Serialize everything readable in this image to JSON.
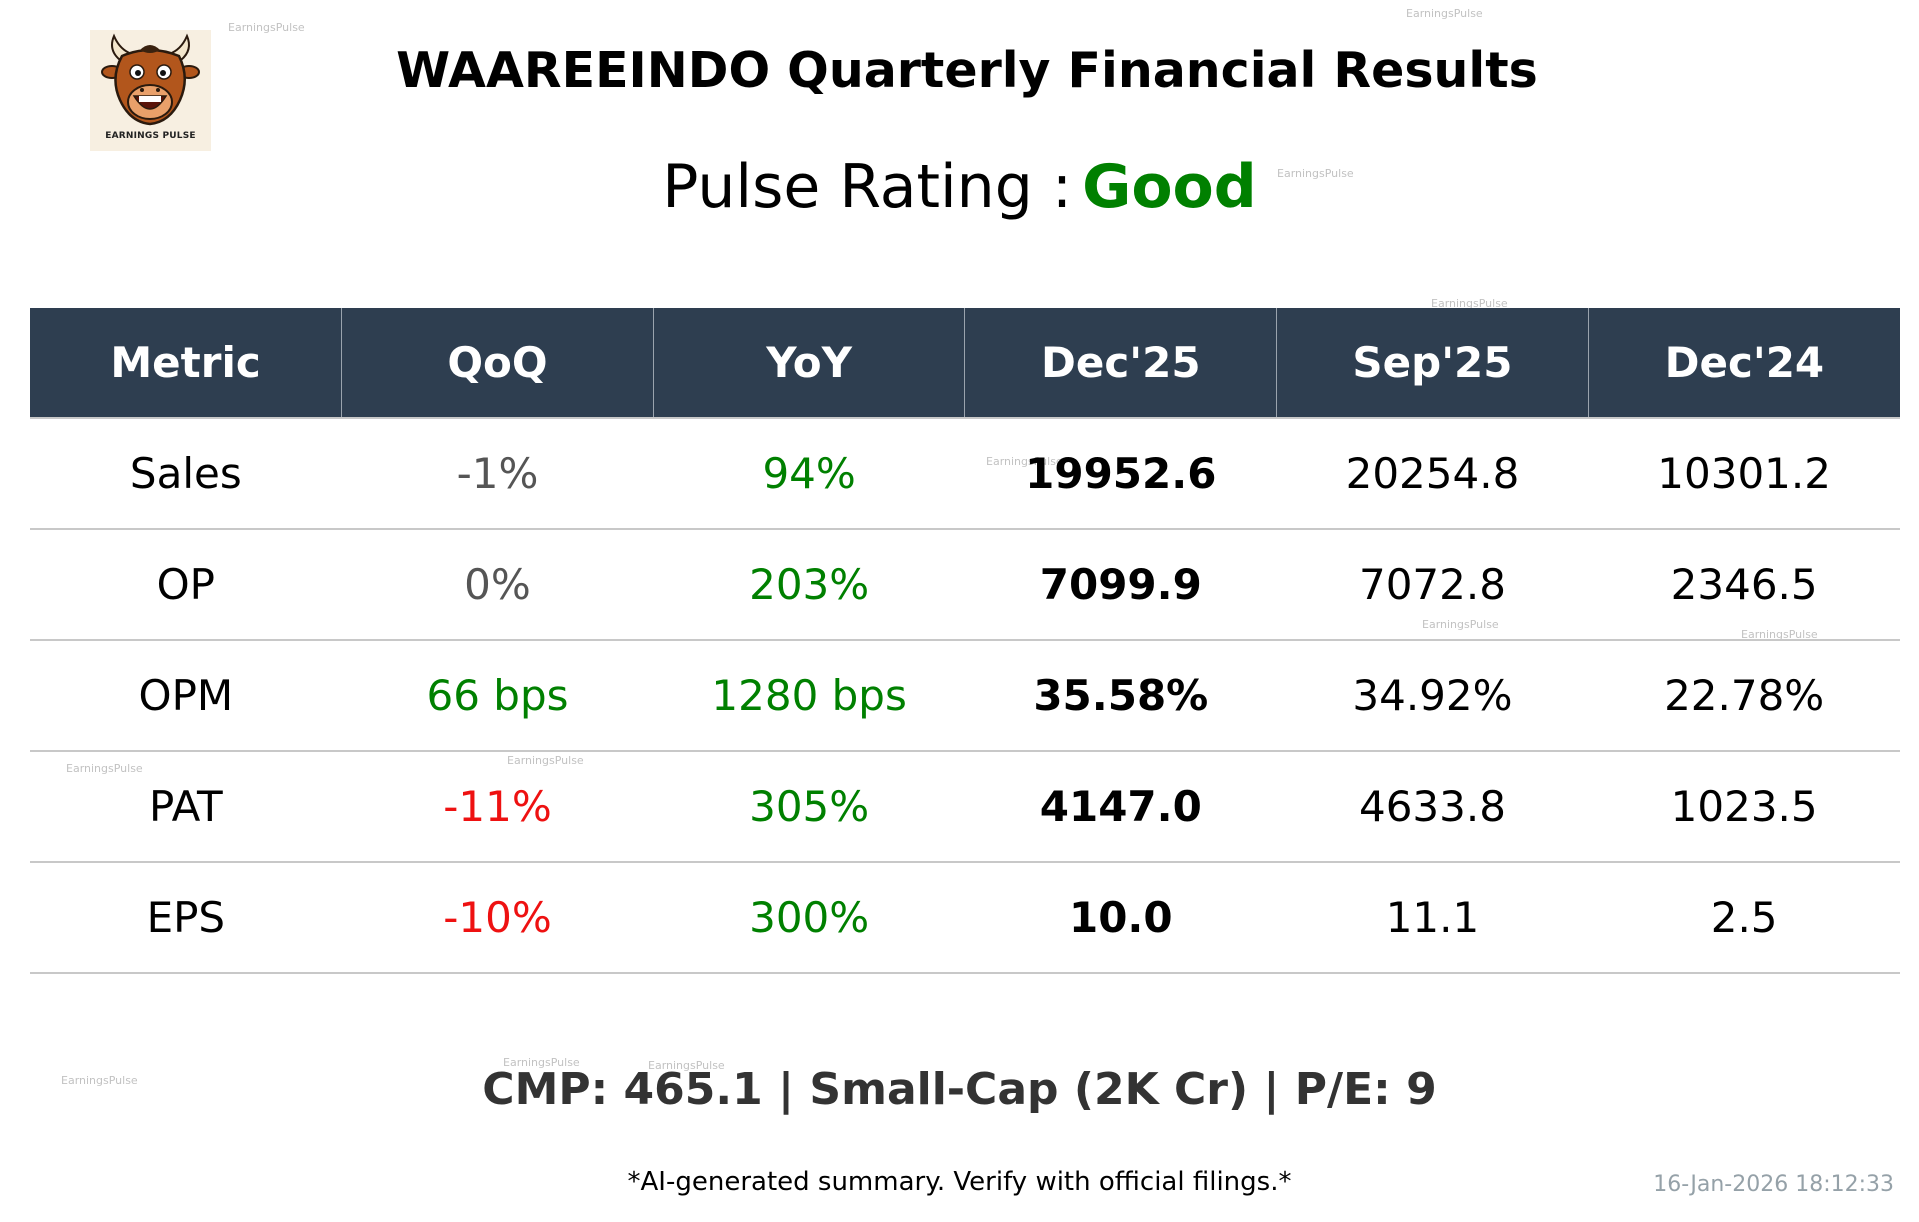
{
  "logo": {
    "text": "EARNINGS PULSE"
  },
  "title": "WAAREEINDO Quarterly Financial Results",
  "rating": {
    "label": "Pulse Rating :",
    "value": "Good",
    "color": "#008000"
  },
  "table": {
    "headers": [
      "Metric",
      "QoQ",
      "YoY",
      "Dec'25",
      "Sep'25",
      "Dec'24"
    ],
    "rows": [
      {
        "metric": "Sales",
        "qoq": "-1%",
        "yoy": "94%",
        "dec25": "19952.6",
        "sep25": "20254.8",
        "dec24": "10301.2"
      },
      {
        "metric": "OP",
        "qoq": "0%",
        "yoy": "203%",
        "dec25": "7099.9",
        "sep25": "7072.8",
        "dec24": "2346.5"
      },
      {
        "metric": "OPM",
        "qoq": "66 bps",
        "yoy": "1280 bps",
        "dec25": "35.58%",
        "sep25": "34.92%",
        "dec24": "22.78%"
      },
      {
        "metric": "PAT",
        "qoq": "-11%",
        "yoy": "305%",
        "dec25": "4147.0",
        "sep25": "4633.8",
        "dec24": "1023.5"
      },
      {
        "metric": "EPS",
        "qoq": "-10%",
        "yoy": "300%",
        "dec25": "10.0",
        "sep25": "11.1",
        "dec24": "2.5"
      }
    ]
  },
  "footer": "CMP: 465.1 | Small-Cap (2K Cr) | P/E: 9",
  "disclaimer": "*AI-generated summary. Verify with official filings.*",
  "timestamp": "16-Jan-2026 18:12:33",
  "watermark": "EarningsPulse",
  "colors": {
    "header_bg": "#2e3e50",
    "positive": "#008000",
    "negative": "#ee1111",
    "neutral": "#555555"
  }
}
